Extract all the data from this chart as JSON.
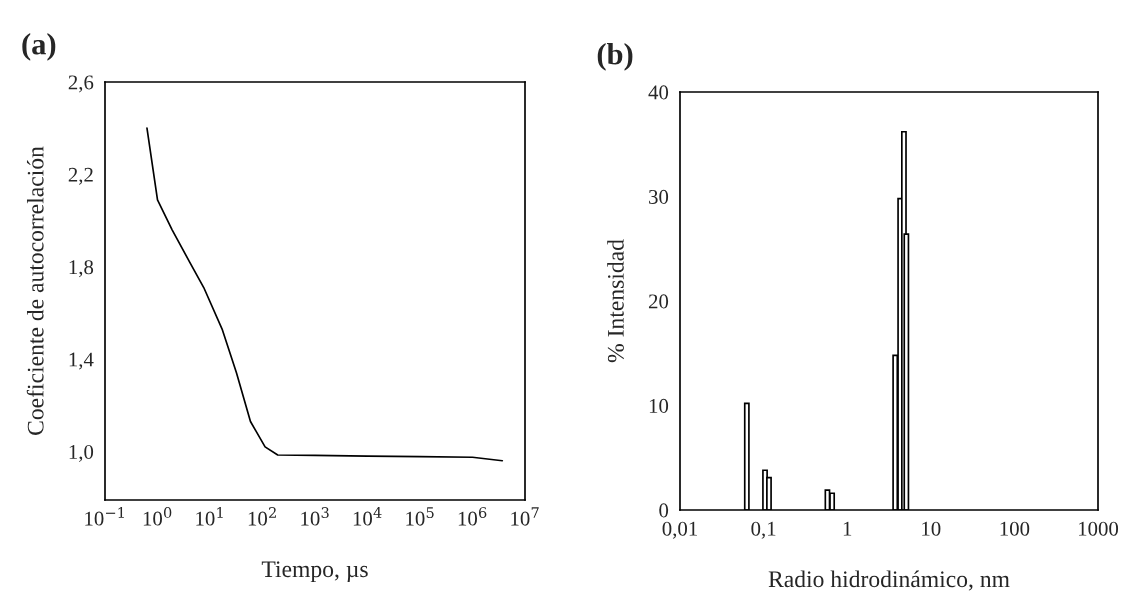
{
  "chart_data": [
    {
      "type": "line",
      "title": "(a)",
      "xlabel": "Tiempo, µs",
      "ylabel": "Coeficiente de autocorrelación",
      "log": "x",
      "series": [
        {
          "color": "#000000",
          "x": [
            0.63,
            1.0,
            1.9,
            4.1,
            7.6,
            17,
            32,
            59,
            112,
            195,
            1000,
            10000,
            100000,
            1000000,
            3700000
          ],
          "values": [
            2.4,
            2.09,
            1.96,
            1.82,
            1.71,
            1.53,
            1.34,
            1.13,
            1.02,
            0.985,
            0.983,
            0.98,
            0.978,
            0.975,
            0.96
          ]
        }
      ],
      "xlim": [
        0.1,
        10000000
      ],
      "ylim": [
        0.79,
        2.6
      ],
      "xticks": [
        {
          "value": 0.1,
          "label": "10$^{−1}$"
        },
        {
          "value": 1,
          "label": "10$^{0}$"
        },
        {
          "value": 10,
          "label": "10$^{1}$"
        },
        {
          "value": 100,
          "label": "10$^{2}$"
        },
        {
          "value": 1000,
          "label": "10$^{3}$"
        },
        {
          "value": 10000,
          "label": "10$^{4}$"
        },
        {
          "value": 100000,
          "label": "10$^{5}$"
        },
        {
          "value": 1000000,
          "label": "10$^{6}$"
        },
        {
          "value": 10000000,
          "label": "10$^{7}$"
        }
      ],
      "yticks": [
        {
          "value": 1.0,
          "label": "1,0"
        },
        {
          "value": 1.4,
          "label": "1,4"
        },
        {
          "value": 1.8,
          "label": "1,8"
        },
        {
          "value": 2.2,
          "label": "2,2"
        },
        {
          "value": 2.6,
          "label": "2,6"
        }
      ],
      "grid": false,
      "legend": false
    },
    {
      "type": "bar",
      "title": "(b)",
      "xlabel": "Radio hidrodinámico, nm",
      "ylabel": "% Intensidad",
      "log": "x",
      "series": [
        {
          "color": "#000000",
          "x": [
            0.063,
            0.104,
            0.116,
            0.58,
            0.66,
            3.75,
            4.3,
            4.77,
            5.1
          ],
          "values": [
            10.2,
            3.8,
            3.1,
            1.9,
            1.6,
            14.8,
            29.8,
            36.2,
            26.4
          ]
        }
      ],
      "xlim": [
        0.01,
        1000
      ],
      "ylim": [
        0,
        40
      ],
      "xticks": [
        {
          "value": 0.01,
          "label": "0,01"
        },
        {
          "value": 0.1,
          "label": "0,1"
        },
        1,
        10,
        100,
        1000
      ],
      "yticks": [
        0,
        10,
        20,
        30,
        40
      ],
      "grid": false,
      "legend": false
    }
  ]
}
